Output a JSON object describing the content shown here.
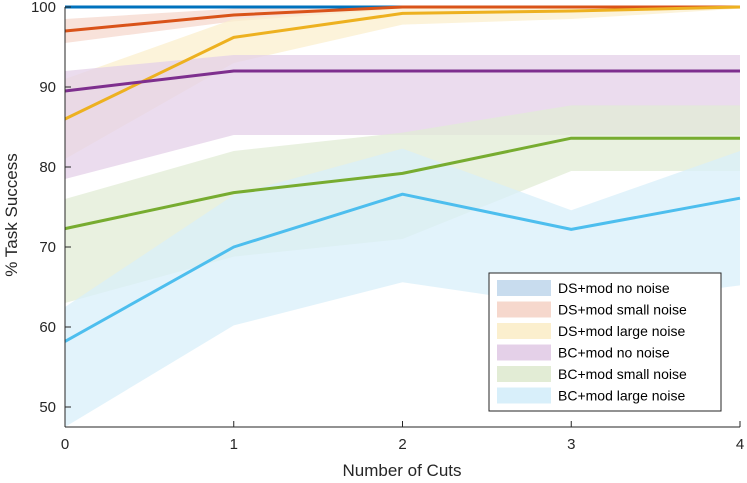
{
  "chart_data": {
    "type": "line",
    "xlabel": "Number of Cuts",
    "ylabel": "% Task Success",
    "xlim": [
      0,
      4
    ],
    "ylim": [
      47.5,
      100
    ],
    "x": [
      0,
      1,
      2,
      3,
      4
    ],
    "x_ticks": [
      "0",
      "1",
      "2",
      "3",
      "4"
    ],
    "y_ticks": [
      "50",
      "60",
      "70",
      "80",
      "90",
      "100"
    ],
    "y_tick_values": [
      50,
      60,
      70,
      80,
      90,
      100
    ],
    "grid": false,
    "legend_position": "bottom-right",
    "series": [
      {
        "name": "DS+mod no noise",
        "color": "#0072BD",
        "band_color": "#c8dcee",
        "values": [
          100,
          100,
          100,
          100,
          100
        ],
        "lower": [
          100,
          100,
          100,
          100,
          100
        ],
        "upper": [
          100,
          100,
          100,
          100,
          100
        ]
      },
      {
        "name": "DS+mod small noise",
        "color": "#D95319",
        "band_color": "#f6d8cd",
        "values": [
          97,
          99,
          100,
          100,
          100
        ],
        "lower": [
          95.5,
          98.2,
          99.8,
          99.8,
          99.8
        ],
        "upper": [
          98.5,
          99.8,
          100,
          100,
          100
        ]
      },
      {
        "name": "DS+mod large noise",
        "color": "#EDB120",
        "band_color": "#fbefce",
        "values": [
          86,
          96.2,
          99.2,
          99.5,
          100
        ],
        "lower": [
          81,
          93,
          97.8,
          98.5,
          99.8
        ],
        "upper": [
          91,
          98.5,
          100,
          100,
          100
        ]
      },
      {
        "name": "BC+mod no noise",
        "color": "#7E2F8E",
        "band_color": "#e4d0e8",
        "values": [
          89.5,
          92,
          92,
          92,
          92
        ],
        "lower": [
          78.5,
          84,
          84,
          84,
          84
        ],
        "upper": [
          92,
          94,
          94,
          94,
          94
        ]
      },
      {
        "name": "BC+mod small noise",
        "color": "#77AC30",
        "band_color": "#e2ecd5",
        "values": [
          72.3,
          76.8,
          79.2,
          83.6,
          83.6
        ],
        "lower": [
          63,
          68.8,
          71,
          79.5,
          79.5
        ],
        "upper": [
          76,
          82,
          84.3,
          87.7,
          87.7
        ]
      },
      {
        "name": "BC+mod large noise",
        "color": "#4DBEEE",
        "band_color": "#d8effa",
        "values": [
          58.2,
          70,
          76.6,
          72.2,
          76.1
        ],
        "lower": [
          47.5,
          60.2,
          65.6,
          62.5,
          65.2
        ],
        "upper": [
          62.5,
          76.5,
          82.3,
          74.6,
          82
        ]
      }
    ]
  }
}
